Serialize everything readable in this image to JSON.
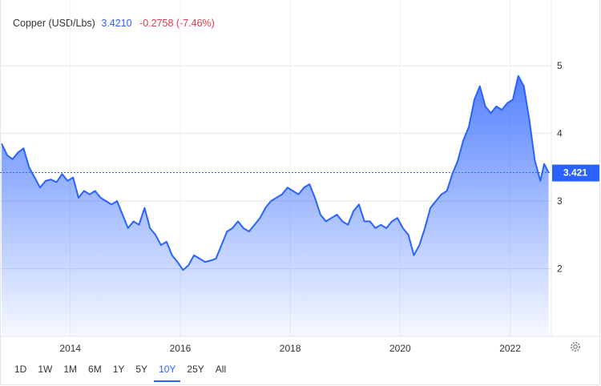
{
  "header": {
    "instrument": "Copper (USD/Lbs)",
    "last": "3.4210",
    "change": "-0.2758 (-7.46%)"
  },
  "price_label": "3.421",
  "ranges": [
    "1D",
    "1W",
    "1M",
    "6M",
    "1Y",
    "5Y",
    "10Y",
    "25Y",
    "All"
  ],
  "active_range": "10Y",
  "icons": {
    "settings": "gear-icon"
  },
  "colors": {
    "line": "#2962ff",
    "change_negative": "#e0394a",
    "price_box": "#2962ff"
  },
  "chart_data": {
    "type": "area",
    "title": "Copper (USD/Lbs)",
    "x_ticks": [
      "2014",
      "2016",
      "2018",
      "2020",
      "2022"
    ],
    "y_ticks": [
      "2",
      "3",
      "4",
      "5"
    ],
    "ylim": [
      1.0,
      5.95
    ],
    "xlim": [
      2012.75,
      2022.75
    ],
    "grid": true,
    "last_value": 3.421,
    "series": [
      {
        "name": "Copper (USD/Lbs)",
        "x": [
          2012.75,
          2012.85,
          2012.95,
          2013.05,
          2013.15,
          2013.25,
          2013.35,
          2013.45,
          2013.55,
          2013.65,
          2013.75,
          2013.85,
          2013.95,
          2014.05,
          2014.15,
          2014.25,
          2014.35,
          2014.45,
          2014.55,
          2014.65,
          2014.75,
          2014.85,
          2014.95,
          2015.05,
          2015.15,
          2015.25,
          2015.35,
          2015.45,
          2015.55,
          2015.65,
          2015.75,
          2015.85,
          2015.95,
          2016.05,
          2016.15,
          2016.25,
          2016.35,
          2016.45,
          2016.55,
          2016.65,
          2016.75,
          2016.85,
          2016.95,
          2017.05,
          2017.15,
          2017.25,
          2017.35,
          2017.45,
          2017.55,
          2017.65,
          2017.75,
          2017.85,
          2017.95,
          2018.05,
          2018.15,
          2018.25,
          2018.35,
          2018.45,
          2018.55,
          2018.65,
          2018.75,
          2018.85,
          2018.95,
          2019.05,
          2019.15,
          2019.25,
          2019.35,
          2019.45,
          2019.55,
          2019.65,
          2019.75,
          2019.85,
          2019.95,
          2020.05,
          2020.15,
          2020.25,
          2020.35,
          2020.45,
          2020.55,
          2020.65,
          2020.75,
          2020.85,
          2020.95,
          2021.05,
          2021.15,
          2021.25,
          2021.35,
          2021.45,
          2021.55,
          2021.65,
          2021.75,
          2021.85,
          2021.95,
          2022.05,
          2022.15,
          2022.25,
          2022.35,
          2022.45,
          2022.55,
          2022.62,
          2022.7
        ],
        "y": [
          3.85,
          3.68,
          3.62,
          3.72,
          3.78,
          3.5,
          3.35,
          3.2,
          3.3,
          3.32,
          3.28,
          3.4,
          3.3,
          3.35,
          3.05,
          3.15,
          3.1,
          3.15,
          3.05,
          3.0,
          2.95,
          3.0,
          2.8,
          2.6,
          2.7,
          2.65,
          2.9,
          2.6,
          2.5,
          2.35,
          2.4,
          2.2,
          2.1,
          1.98,
          2.05,
          2.2,
          2.15,
          2.1,
          2.12,
          2.15,
          2.35,
          2.55,
          2.6,
          2.7,
          2.6,
          2.55,
          2.65,
          2.75,
          2.9,
          3.0,
          3.05,
          3.1,
          3.2,
          3.15,
          3.1,
          3.2,
          3.25,
          3.05,
          2.8,
          2.7,
          2.75,
          2.8,
          2.7,
          2.65,
          2.85,
          2.95,
          2.7,
          2.7,
          2.6,
          2.65,
          2.6,
          2.7,
          2.75,
          2.6,
          2.5,
          2.2,
          2.35,
          2.6,
          2.9,
          3.0,
          3.1,
          3.15,
          3.4,
          3.6,
          3.9,
          4.1,
          4.5,
          4.7,
          4.4,
          4.3,
          4.4,
          4.35,
          4.45,
          4.5,
          4.85,
          4.7,
          4.2,
          3.6,
          3.3,
          3.55,
          3.421
        ]
      }
    ]
  }
}
